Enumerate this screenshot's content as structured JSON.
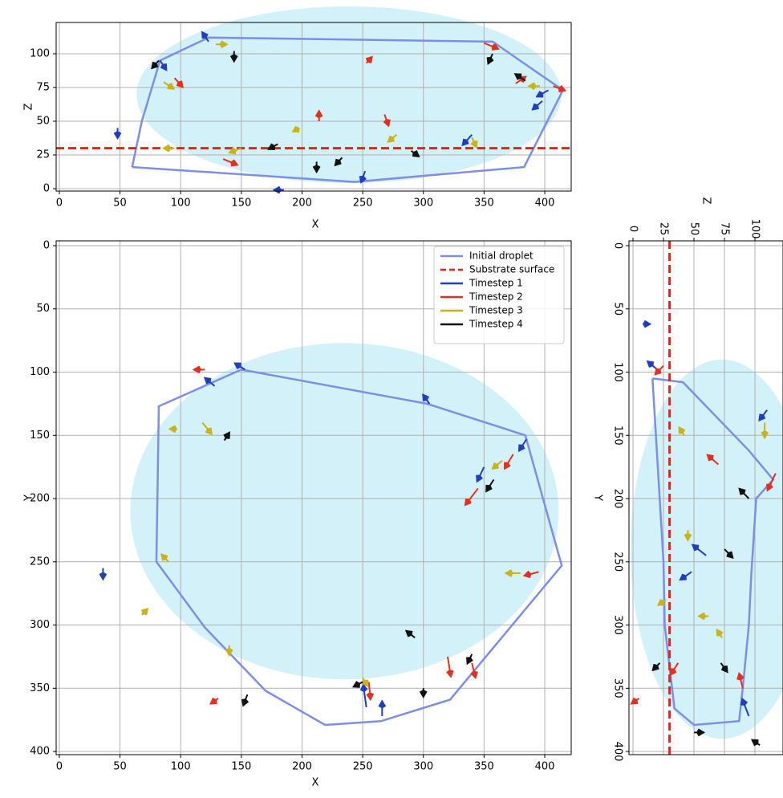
{
  "chart_data": [
    {
      "type": "arrow-field",
      "xlabel": "X",
      "ylabel": "Z",
      "xlim": [
        -2.6,
        421.8
      ],
      "ylim": [
        -1.8,
        123.2
      ],
      "xticks": [
        0,
        50,
        100,
        150,
        200,
        250,
        300,
        350,
        400
      ],
      "yticks": [
        0,
        25,
        50,
        75,
        100
      ],
      "grid": true,
      "ellipse": {
        "cx": 238.7,
        "cy": 69.6,
        "rx": 175,
        "ry": 65.5,
        "color": "#d3f1f8"
      },
      "outline": {
        "name": "Initial droplet",
        "color": "#7d8de8",
        "x": [
          60,
          68,
          83,
          123,
          357,
          415,
          383,
          243,
          60
        ],
        "y": [
          16,
          50,
          95,
          112,
          109,
          73,
          16,
          5,
          16
        ]
      },
      "substrate": {
        "name": "Substrate surface",
        "color": "#e8201a",
        "axis": "y",
        "value": 30
      },
      "series": [
        {
          "name": "Timestep 1",
          "color": "#1f3fbf",
          "x": [
            123,
            83,
            403,
            340,
            48,
            252,
            185,
            398
          ],
          "y": [
            109,
            95,
            73,
            40,
            45,
            13,
            -1,
            65
          ],
          "u": [
            -3,
            3,
            -6,
            -5,
            0,
            -2,
            -4,
            -5
          ],
          "v": [
            4,
            -4,
            -3,
            -5,
            -4,
            -5,
            0,
            -4
          ]
        },
        {
          "name": "Timestep 2",
          "color": "#e3301f",
          "x": [
            350,
            95,
            407,
            268,
            214,
            135,
            376,
            253
          ],
          "y": [
            108,
            82,
            76,
            55,
            50,
            22,
            78,
            93
          ],
          "u": [
            8,
            4,
            6,
            2,
            0,
            8,
            5,
            2
          ],
          "v": [
            -3,
            -4,
            -2,
            -5,
            4,
            -3,
            3,
            2
          ]
        },
        {
          "name": "Timestep 3",
          "color": "#c9b21b",
          "x": [
            129,
            86,
            396,
            278,
            198,
            95,
            150,
            340
          ],
          "y": [
            107,
            79,
            76,
            40,
            45,
            30,
            30,
            38
          ],
          "u": [
            5,
            5,
            -5,
            -4,
            -2,
            -5,
            -6,
            2
          ],
          "v": [
            0,
            -3,
            0,
            -3,
            -1,
            0,
            -2,
            -4
          ]
        },
        {
          "name": "Timestep 4",
          "color": "#111111",
          "x": [
            144,
            82,
            384,
            290,
            212,
            180,
            357,
            233
          ],
          "y": [
            102,
            95,
            80,
            28,
            20,
            33,
            100,
            23
          ],
          "u": [
            0,
            -3,
            -5,
            3,
            0,
            -4,
            -2,
            -3
          ],
          "v": [
            -4,
            -3,
            3,
            -2,
            -4,
            -2,
            -4,
            -3
          ]
        }
      ]
    },
    {
      "type": "arrow-field",
      "xlabel": "X",
      "ylabel": "Y",
      "xlim": [
        -2.6,
        421.8
      ],
      "ylim": [
        402.5,
        -3.8
      ],
      "xticks": [
        0,
        50,
        100,
        150,
        200,
        250,
        300,
        350,
        400
      ],
      "yticks": [
        0,
        50,
        100,
        150,
        200,
        250,
        300,
        350,
        400
      ],
      "grid": true,
      "ellipse": {
        "cx": 235,
        "cy": 210,
        "rx": 176.5,
        "ry": 133,
        "color": "#d3f1f8"
      },
      "outline": {
        "name": "Initial droplet",
        "color": "#7d8de8",
        "x": [
          150,
          82,
          80,
          120,
          170,
          219,
          265,
          322,
          414,
          384,
          303,
          150
        ],
        "y": [
          98,
          127,
          250,
          302,
          352,
          379,
          376,
          359,
          253,
          150,
          125,
          98
        ]
      },
      "substrate": {
        "name": "Substrate surface",
        "color": "#e8201a"
      },
      "legend": "upper right",
      "series": [
        {
          "name": "Timestep 1",
          "color": "#1f3fbf",
          "x": [
            385,
            350,
            266,
            253,
            153,
            128,
            36,
            305
          ],
          "y": [
            153,
            175,
            372,
            365,
            98,
            111,
            255,
            125
          ],
          "u": [
            -4,
            -4,
            0,
            -2,
            -5,
            -5,
            0,
            -3
          ],
          "v": [
            6,
            8,
            -8,
            -14,
            -3,
            -4,
            5,
            -4
          ]
        },
        {
          "name": "Timestep 2",
          "color": "#e3301f",
          "x": [
            374,
            345,
            320,
            255,
            120,
            395,
            340,
            131
          ],
          "y": [
            165,
            192,
            325,
            345,
            98,
            258,
            330,
            358
          ],
          "u": [
            -5,
            -8,
            2,
            1,
            -5,
            -8,
            2,
            -3
          ],
          "v": [
            8,
            10,
            12,
            10,
            0,
            2,
            8,
            2
          ]
        },
        {
          "name": "Timestep 3",
          "color": "#c9b21b",
          "x": [
            365,
            118,
            140,
            380,
            97,
            250,
            90,
            68
          ],
          "y": [
            170,
            140,
            316,
            259,
            145,
            342,
            250,
            292
          ],
          "u": [
            -5,
            5,
            0,
            -8,
            -2,
            2,
            -3,
            2
          ],
          "v": [
            4,
            6,
            4,
            0,
            0,
            3,
            -3,
            -2
          ]
        },
        {
          "name": "Timestep 4",
          "color": "#111111",
          "x": [
            358,
            136,
            340,
            250,
            155,
            300,
            138,
            293
          ],
          "y": [
            185,
            154,
            323,
            345,
            355,
            350,
            178,
            310
          ],
          "u": [
            -4,
            2,
            -2,
            -4,
            -2,
            0,
            0,
            -4
          ],
          "v": [
            6,
            -3,
            4,
            2,
            5,
            3,
            0,
            -3
          ]
        }
      ]
    },
    {
      "type": "arrow-field",
      "xlabel": "Z",
      "ylabel": "Y",
      "xlim": [
        -3.3,
        123
      ],
      "ylim": [
        402.5,
        -3.8
      ],
      "xticks": [
        0,
        25,
        50,
        75,
        100
      ],
      "yticks": [
        0,
        50,
        100,
        150,
        200,
        250,
        300,
        350,
        400
      ],
      "grid": true,
      "ellipse": {
        "cx": 73,
        "cy": 240,
        "rx": 75,
        "ry": 150,
        "color": "#d3f1f8"
      },
      "outline": {
        "name": "Initial droplet",
        "color": "#7d8de8",
        "x": [
          16,
          41,
          95,
          115,
          101,
          97,
          95,
          90,
          87,
          50,
          34,
          26,
          25,
          16
        ],
        "y": [
          105,
          108,
          162,
          185,
          200,
          260,
          300,
          350,
          376,
          379,
          366,
          300,
          250,
          105
        ]
      },
      "substrate": {
        "name": "Substrate surface",
        "color": "#e8201a",
        "axis": "x",
        "value": 30
      },
      "series": [
        {
          "name": "Timestep 1",
          "color": "#1f3fbf",
          "x": [
            20,
            110,
            60,
            95,
            48,
            8
          ],
          "y": [
            98,
            130,
            245,
            372,
            258,
            62
          ],
          "u": [
            -5,
            -4,
            -8,
            -4,
            -6,
            2
          ],
          "v": [
            -4,
            5,
            -6,
            -10,
            4,
            0
          ]
        },
        {
          "name": "Timestep 2",
          "color": "#e3301f",
          "x": [
            117,
            25,
            70,
            90,
            37,
            5
          ],
          "y": [
            180,
            95,
            173,
            350,
            330,
            358
          ],
          "u": [
            -5,
            -4,
            -6,
            -2,
            -4,
            -3
          ],
          "v": [
            10,
            4,
            -5,
            -8,
            6,
            2
          ]
        },
        {
          "name": "Timestep 3",
          "color": "#c9b21b",
          "x": [
            45,
            62,
            108,
            73,
            42,
            27
          ],
          "y": [
            225,
            293,
            140,
            310,
            150,
            280
          ],
          "u": [
            0,
            -4,
            0,
            -2,
            -2,
            -3
          ],
          "v": [
            4,
            0,
            8,
            -3,
            -3,
            2
          ]
        },
        {
          "name": "Timestep 4",
          "color": "#111111",
          "x": [
            95,
            75,
            50,
            104,
            72,
            22
          ],
          "y": [
            200,
            240,
            385,
            395,
            330,
            330
          ],
          "u": [
            -5,
            4,
            4,
            -3,
            3,
            -3
          ],
          "v": [
            -5,
            4,
            0,
            -2,
            4,
            3
          ]
        }
      ]
    }
  ]
}
